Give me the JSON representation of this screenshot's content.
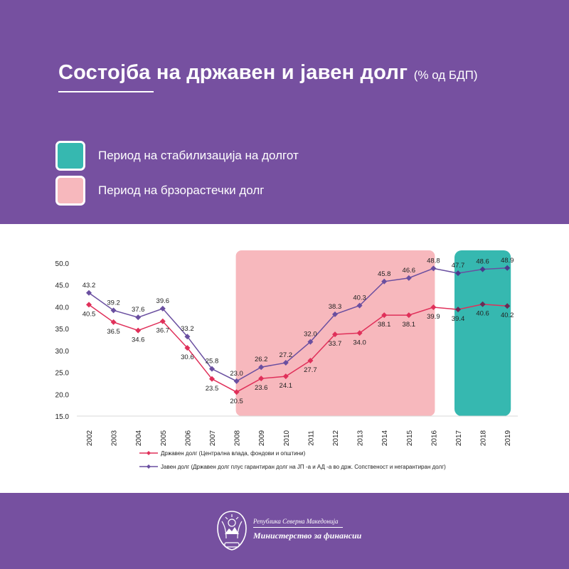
{
  "header": {
    "title": "Состојба на државен и јавен долг",
    "subtitle": "(% од БДП)"
  },
  "legend_boxes": [
    {
      "label": "Период на стабилизација на долгот",
      "color": "#36b8b0"
    },
    {
      "label": "Период на брзорастечки долг",
      "color": "#f7b8bd"
    }
  ],
  "chart_data": {
    "type": "line",
    "categories": [
      "2002",
      "2003",
      "2004",
      "2005",
      "2006",
      "2007",
      "2008",
      "2009",
      "2010",
      "2011",
      "2012",
      "2013",
      "2014",
      "2015",
      "2016",
      "2017",
      "2018",
      "2019"
    ],
    "ylim": [
      15,
      50
    ],
    "yticks": [
      "15.0",
      "20.0",
      "25.0",
      "30.0",
      "35.0",
      "40.0",
      "45.0",
      "50.0"
    ],
    "series": [
      {
        "name": "Државен долг (Централна влада, фондови и општини)",
        "color": "#e0305a",
        "values": [
          40.5,
          36.5,
          34.6,
          36.7,
          30.6,
          23.5,
          20.5,
          23.6,
          24.1,
          27.7,
          33.7,
          34.0,
          38.1,
          38.1,
          39.9,
          39.4,
          40.6,
          40.2
        ]
      },
      {
        "name": "Јавен долг (Државен долг плус гарантиран долг на ЈП -а и АД -а во држ. Сопственост и негарантиран долг)",
        "color": "#6a4fa0",
        "values": [
          43.2,
          39.2,
          37.6,
          39.6,
          33.2,
          25.8,
          23.0,
          26.2,
          27.2,
          32.0,
          38.3,
          40.3,
          45.8,
          46.6,
          48.8,
          47.7,
          48.6,
          48.9
        ]
      }
    ],
    "highlights": [
      {
        "from": "2008",
        "to": "2016",
        "color": "#f7b8bd"
      },
      {
        "from": "2017",
        "to": "2019",
        "color": "#36b8b0"
      }
    ]
  },
  "footer": {
    "republic": "Република Северна Македонија",
    "ministry": "Министерство за финансии"
  }
}
